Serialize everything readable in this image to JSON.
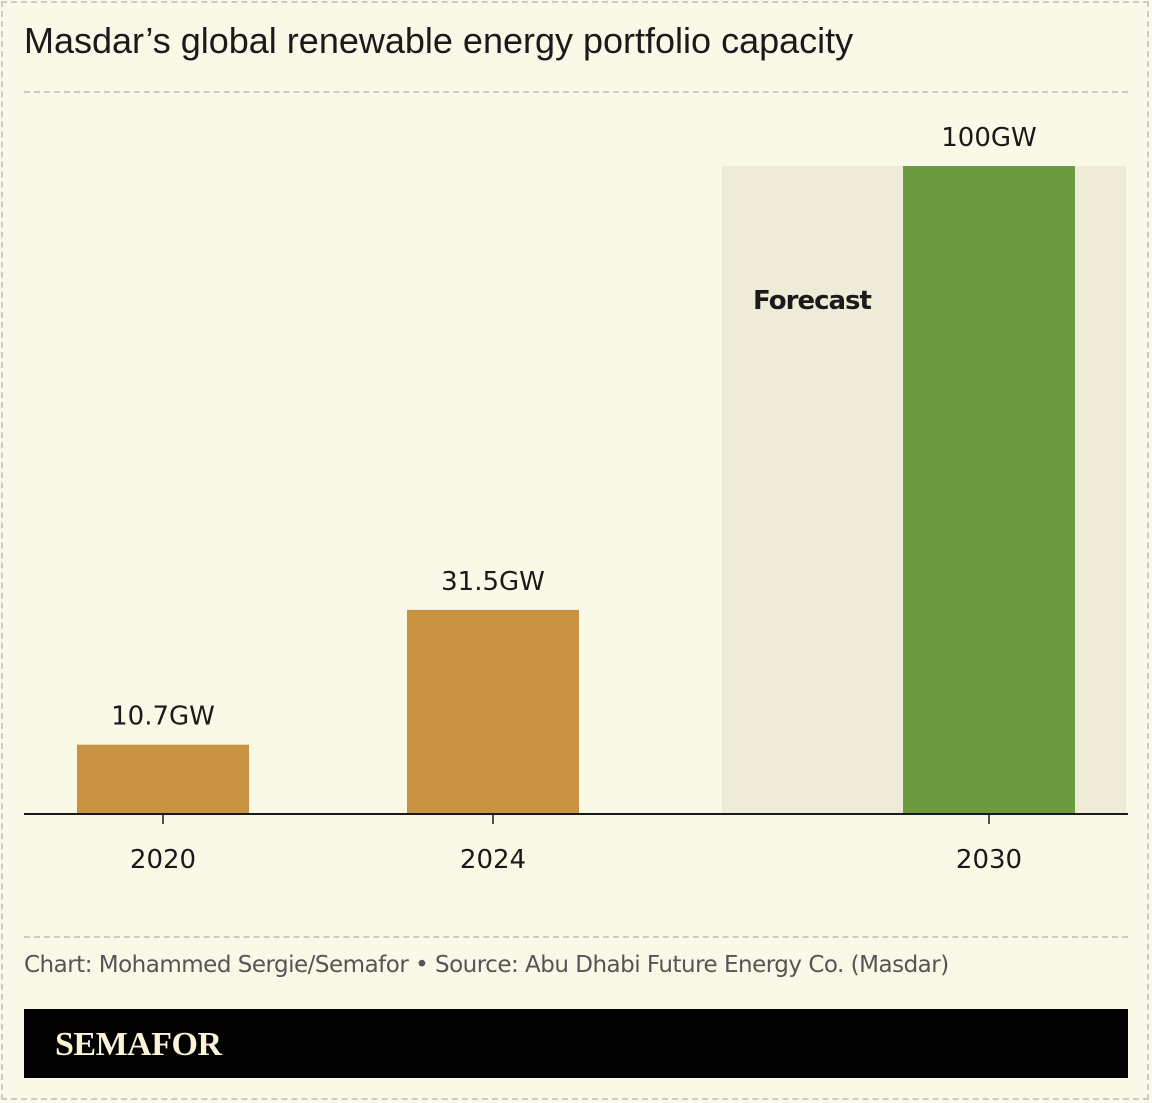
{
  "title": "Masdar’s global renewable energy portfolio capacity",
  "source": "Chart: Mohammed Sergie/Semafor • Source: Abu Dhabi Future Energy Co. (Masdar)",
  "brand": "SEMAFOR",
  "chart_data": {
    "type": "bar",
    "categories": [
      "2020",
      "2024",
      "2030"
    ],
    "values": [
      10.7,
      31.5,
      100
    ],
    "data_labels": [
      "10.7GW",
      "31.5GW",
      "100GW"
    ],
    "unit": "GW",
    "ylim": [
      0,
      100
    ],
    "grid": false,
    "colors": [
      "#c89343",
      "#c89343",
      "#6e9a3f"
    ],
    "forecast_label": "Forecast",
    "forecast_shading_color": "#efebd9"
  }
}
